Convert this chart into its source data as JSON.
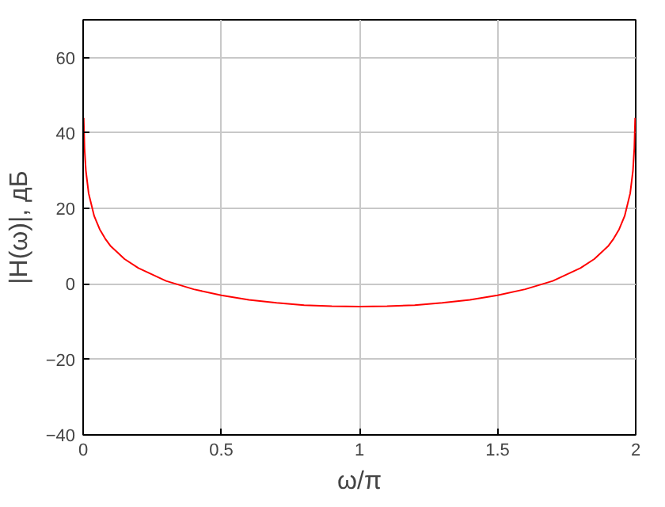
{
  "chart_data": {
    "type": "line",
    "xlabel": "ω/π",
    "ylabel": "|H(ω)|, дБ",
    "x": [
      0.002,
      0.005,
      0.01,
      0.02,
      0.04,
      0.06,
      0.08,
      0.1,
      0.15,
      0.2,
      0.3,
      0.4,
      0.5,
      0.6,
      0.7,
      0.8,
      0.9,
      1.0,
      1.1,
      1.2,
      1.3,
      1.4,
      1.5,
      1.6,
      1.7,
      1.8,
      1.85,
      1.9,
      1.92,
      1.94,
      1.96,
      1.98,
      1.99,
      1.995,
      1.998
    ],
    "series": [
      {
        "color": "#ff0000",
        "values": [
          44,
          36,
          30,
          24,
          18,
          14.5,
          12,
          10,
          6.6,
          4.2,
          0.8,
          -1.4,
          -3,
          -4.2,
          -5,
          -5.6,
          -5.9,
          -6,
          -5.9,
          -5.6,
          -5,
          -4.2,
          -3,
          -1.4,
          0.8,
          4.2,
          6.6,
          10,
          12,
          14.5,
          18,
          24,
          30,
          36,
          44
        ]
      }
    ],
    "xlim": [
      0,
      2
    ],
    "ylim": [
      -40,
      70
    ],
    "xticks": [
      0,
      0.5,
      1,
      1.5,
      2
    ],
    "yticks": [
      -40,
      -20,
      0,
      20,
      40,
      60
    ],
    "grid": true,
    "line_style": "solid"
  }
}
